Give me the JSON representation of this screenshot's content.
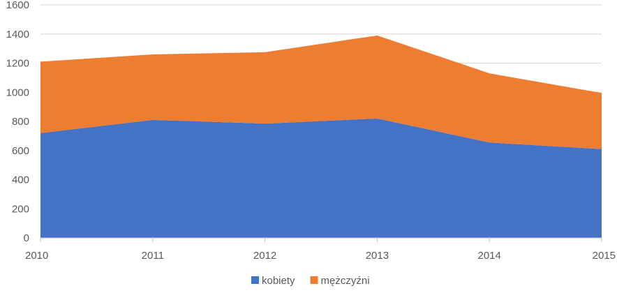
{
  "chart_data": {
    "type": "area",
    "stacked": true,
    "categories": [
      "2010",
      "2011",
      "2012",
      "2013",
      "2014",
      "2015"
    ],
    "series": [
      {
        "name": "kobiety",
        "color": "#4472C4",
        "values": [
          720,
          810,
          785,
          820,
          655,
          610
        ]
      },
      {
        "name": "mężczyźni",
        "color": "#ED7D31",
        "values": [
          490,
          450,
          490,
          570,
          475,
          385
        ]
      }
    ],
    "yticks": [
      0,
      200,
      400,
      600,
      800,
      1000,
      1200,
      1400,
      1600
    ],
    "ylim": [
      0,
      1600
    ],
    "grid": true,
    "legend": "bottom"
  }
}
